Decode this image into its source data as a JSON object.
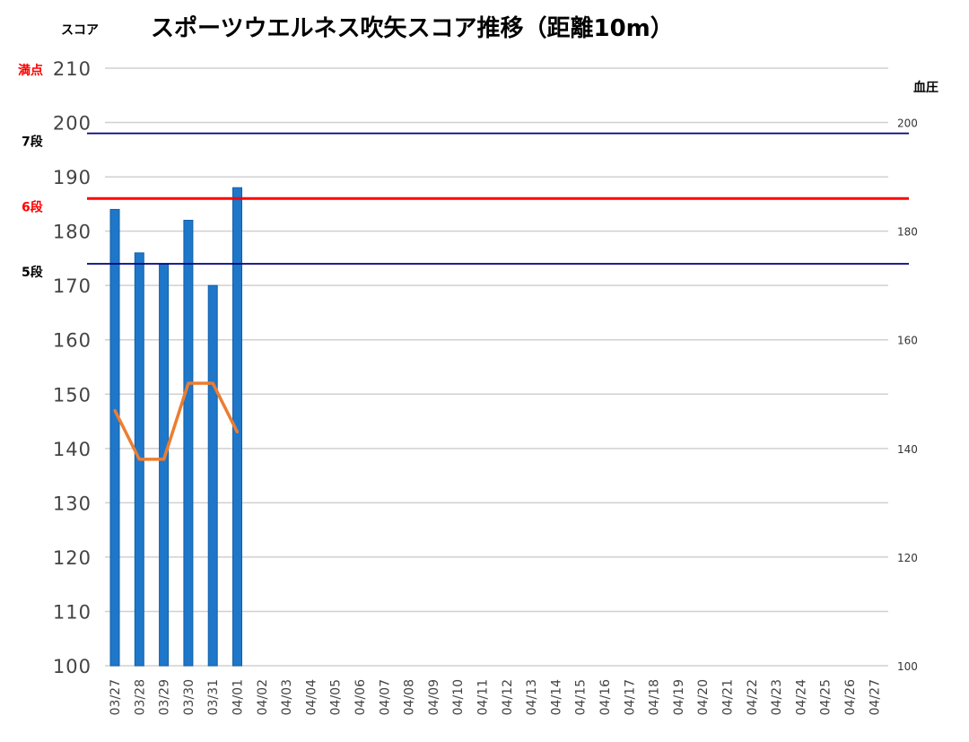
{
  "chart_data": {
    "type": "bar",
    "title": "スポーツウエルネス吹矢スコア推移（距離10m）",
    "ylabel": "スコア",
    "y2label": "血圧",
    "ylim": [
      100,
      210
    ],
    "y2lim": [
      100,
      210
    ],
    "yticks": [
      100,
      110,
      120,
      130,
      140,
      150,
      160,
      170,
      180,
      190,
      200,
      210
    ],
    "y2ticks": [
      100,
      120,
      140,
      160,
      180,
      200
    ],
    "grid": true,
    "categories": [
      "03/27",
      "03/28",
      "03/29",
      "03/30",
      "03/31",
      "04/01",
      "04/02",
      "04/03",
      "04/04",
      "04/05",
      "04/06",
      "04/07",
      "04/08",
      "04/09",
      "04/10",
      "04/11",
      "04/12",
      "04/13",
      "04/14",
      "04/15",
      "04/16",
      "04/17",
      "04/18",
      "04/19",
      "04/20",
      "04/21",
      "04/22",
      "04/23",
      "04/24",
      "04/25",
      "04/26",
      "04/27"
    ],
    "series": [
      {
        "type": "bar",
        "axis": "left",
        "color": "#1f77c9",
        "values": [
          184,
          176,
          174,
          182,
          170,
          188,
          null,
          null,
          null,
          null,
          null,
          null,
          null,
          null,
          null,
          null,
          null,
          null,
          null,
          null,
          null,
          null,
          null,
          null,
          null,
          null,
          null,
          null,
          null,
          null,
          null,
          null
        ]
      },
      {
        "type": "line",
        "axis": "right",
        "color": "#ed7d31",
        "values": [
          147,
          138,
          138,
          152,
          152,
          143,
          null,
          null,
          null,
          null,
          null,
          null,
          null,
          null,
          null,
          null,
          null,
          null,
          null,
          null,
          null,
          null,
          null,
          null,
          null,
          null,
          null,
          null,
          null,
          null,
          null,
          null
        ]
      }
    ],
    "reference_lines": [
      {
        "label": "満点",
        "value": 210,
        "color": "#ff0000",
        "style": "gridline"
      },
      {
        "label": "7段",
        "value": 198,
        "color": "#000080"
      },
      {
        "label": "6段",
        "value": 186,
        "color": "#ff0000"
      },
      {
        "label": "5段",
        "value": 174,
        "color": "#000080"
      }
    ]
  }
}
